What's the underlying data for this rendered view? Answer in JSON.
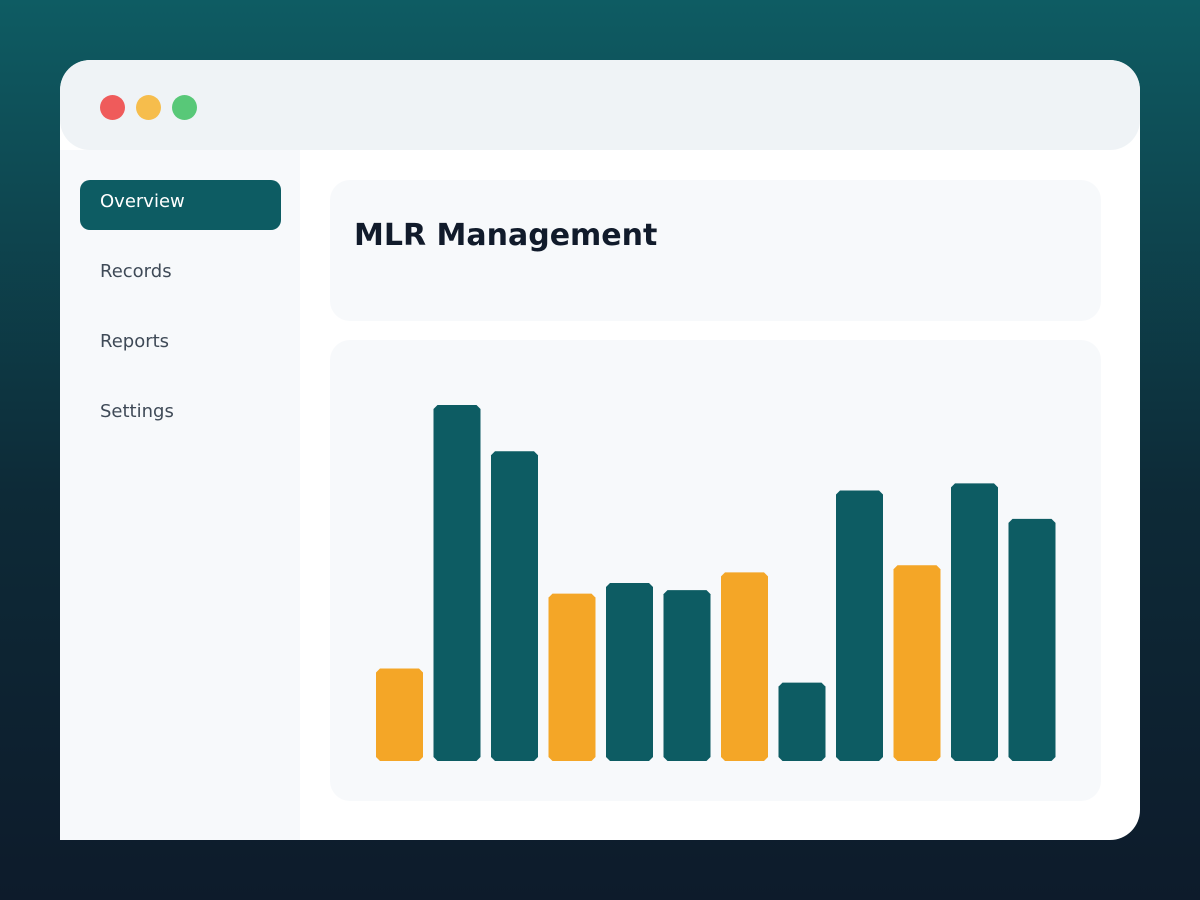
{
  "window": {
    "controls": [
      "close",
      "minimize",
      "maximize"
    ],
    "colors": {
      "close": "#ef5b5b",
      "minimize": "#f6bd4c",
      "maximize": "#58c878"
    }
  },
  "sidebar": {
    "items": [
      {
        "label": "Overview",
        "active": true
      },
      {
        "label": "Records",
        "active": false
      },
      {
        "label": "Reports",
        "active": false
      },
      {
        "label": "Settings",
        "active": false
      }
    ]
  },
  "main": {
    "title": "MLR Management"
  },
  "colors": {
    "accent": "#0d5c63",
    "highlight": "#f4a627"
  },
  "chart_data": {
    "type": "bar",
    "ylim": [
      0,
      100
    ],
    "grid": false,
    "values": [
      26,
      100,
      87,
      47,
      50,
      48,
      53,
      22,
      76,
      55,
      78,
      68
    ],
    "highlight": [
      true,
      false,
      false,
      true,
      false,
      false,
      true,
      false,
      false,
      true,
      false,
      false
    ]
  }
}
